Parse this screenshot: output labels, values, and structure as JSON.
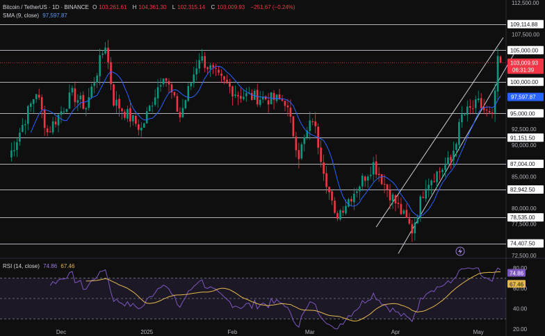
{
  "header": {
    "symbol": "Bitcoin / TetherUS · 1D · BINANCE",
    "o_label": "O",
    "o_value": "103,261.61",
    "h_label": "H",
    "h_value": "104,361.30",
    "l_label": "L",
    "l_value": "102,315.14",
    "c_label": "C",
    "c_value": "103,009.93",
    "change": "−251.67 (−0.24%)",
    "sma_label": "SMA (9, close)",
    "sma_value": "97,597.87"
  },
  "rsi_legend": {
    "label": "RSI (14, close)",
    "rsi_value": "74.86",
    "ma_value": "67.46"
  },
  "colors": {
    "up": "#089981",
    "down": "#f23645",
    "sma": "#2962ff",
    "rsi": "#7e57c2",
    "rsi_ma": "#e6b94f",
    "background": "#0f0f0f"
  },
  "chart_data": {
    "type": "candlestick",
    "ylim": [
      72500,
      112500
    ],
    "y_ticks": [
      "112,500.00",
      "107,500.00",
      "92,500.00",
      "90,000.00",
      "85,000.00",
      "80,000.00",
      "77,500.00",
      "72,500.00"
    ],
    "x_ticks": [
      "Dec",
      "2025",
      "Feb",
      "Mar",
      "Apr",
      "May"
    ],
    "horizontal_levels": [
      "109,114.88",
      "105,000.00",
      "100,000.00",
      "95,000.00",
      "91,151.50",
      "87,004.00",
      "82,942.50",
      "78,535.00",
      "74,407.50"
    ],
    "price_tag": {
      "value": "103,009.93",
      "countdown": "06:31:39"
    },
    "sma_tag": "97,597.87",
    "channel_lines": [
      {
        "from": [
          "2025-03-25",
          77000
        ],
        "to": [
          "2025-05-10",
          107000
        ]
      },
      {
        "from": [
          "2025-04-02",
          72800
        ],
        "to": [
          "2025-05-14",
          104500
        ]
      }
    ],
    "rsi": {
      "ylim": [
        20,
        80
      ],
      "y_ticks": [
        "80.00",
        "60.00",
        "40.00",
        "20.00"
      ],
      "upper_band": 70,
      "lower_band": 30,
      "last_rsi": "74.86",
      "last_ma": "67.46"
    }
  }
}
